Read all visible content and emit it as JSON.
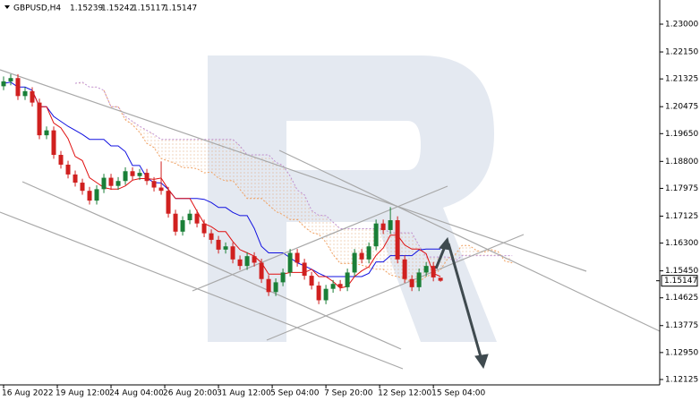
{
  "chart_data": {
    "type": "candlestick",
    "symbol": "GBPUSD,H4",
    "ohlc": [
      [
        1.211,
        1.214,
        1.2098,
        1.2125
      ],
      [
        1.2125,
        1.2147,
        1.2113,
        1.2135
      ],
      [
        1.2135,
        1.2147,
        1.2068,
        1.208
      ],
      [
        1.208,
        1.2107,
        1.2068,
        1.2095
      ],
      [
        1.2095,
        1.2107,
        1.2048,
        1.206
      ],
      [
        1.206,
        1.2072,
        1.1948,
        1.196
      ],
      [
        1.196,
        1.1987,
        1.1948,
        1.1975
      ],
      [
        1.1975,
        1.1987,
        1.1888,
        1.19
      ],
      [
        1.19,
        1.1912,
        1.1858,
        1.187
      ],
      [
        1.187,
        1.1882,
        1.1828,
        1.184
      ],
      [
        1.184,
        1.1852,
        1.1803,
        1.1815
      ],
      [
        1.1815,
        1.1827,
        1.1778,
        1.179
      ],
      [
        1.179,
        1.1802,
        1.1748,
        1.176
      ],
      [
        1.176,
        1.1807,
        1.1748,
        1.1795
      ],
      [
        1.1795,
        1.1842,
        1.1783,
        1.183
      ],
      [
        1.183,
        1.1842,
        1.1793,
        1.1805
      ],
      [
        1.1805,
        1.1832,
        1.1793,
        1.182
      ],
      [
        1.182,
        1.1862,
        1.1808,
        1.185
      ],
      [
        1.185,
        1.1862,
        1.1823,
        1.1835
      ],
      [
        1.1835,
        1.1857,
        1.1823,
        1.1845
      ],
      [
        1.1845,
        1.1857,
        1.1808,
        1.182
      ],
      [
        1.182,
        1.1832,
        1.1788,
        1.18
      ],
      [
        1.18,
        1.188,
        1.1778,
        1.179
      ],
      [
        1.179,
        1.1802,
        1.1708,
        1.172
      ],
      [
        1.172,
        1.1732,
        1.1653,
        1.1665
      ],
      [
        1.1665,
        1.1712,
        1.1653,
        1.17
      ],
      [
        1.17,
        1.1732,
        1.1688,
        1.172
      ],
      [
        1.172,
        1.1732,
        1.1678,
        1.169
      ],
      [
        1.169,
        1.1702,
        1.1648,
        1.166
      ],
      [
        1.166,
        1.1672,
        1.1628,
        1.164
      ],
      [
        1.164,
        1.1652,
        1.1598,
        1.161
      ],
      [
        1.161,
        1.1632,
        1.1598,
        1.162
      ],
      [
        1.162,
        1.1632,
        1.1568,
        1.158
      ],
      [
        1.158,
        1.1592,
        1.1548,
        1.156
      ],
      [
        1.156,
        1.1602,
        1.1548,
        1.159
      ],
      [
        1.159,
        1.1602,
        1.1558,
        1.157
      ],
      [
        1.157,
        1.1582,
        1.1508,
        1.152
      ],
      [
        1.152,
        1.1532,
        1.1468,
        1.148
      ],
      [
        1.148,
        1.1522,
        1.1468,
        1.151
      ],
      [
        1.151,
        1.1552,
        1.1498,
        1.154
      ],
      [
        1.154,
        1.1612,
        1.1528,
        1.16
      ],
      [
        1.16,
        1.1612,
        1.1558,
        1.157
      ],
      [
        1.157,
        1.1582,
        1.1518,
        1.153
      ],
      [
        1.153,
        1.1542,
        1.1488,
        1.15
      ],
      [
        1.15,
        1.1512,
        1.1443,
        1.1455
      ],
      [
        1.1455,
        1.1502,
        1.1443,
        1.149
      ],
      [
        1.149,
        1.1517,
        1.1478,
        1.1505
      ],
      [
        1.1505,
        1.1517,
        1.1483,
        1.1495
      ],
      [
        1.1495,
        1.1552,
        1.1483,
        1.154
      ],
      [
        1.154,
        1.1612,
        1.1528,
        1.16
      ],
      [
        1.16,
        1.1612,
        1.1568,
        1.158
      ],
      [
        1.158,
        1.1632,
        1.1568,
        1.162
      ],
      [
        1.162,
        1.1702,
        1.1608,
        1.169
      ],
      [
        1.169,
        1.1702,
        1.1658,
        1.167
      ],
      [
        1.167,
        1.174,
        1.1658,
        1.17
      ],
      [
        1.17,
        1.1712,
        1.1568,
        1.158
      ],
      [
        1.158,
        1.1592,
        1.1508,
        1.152
      ],
      [
        1.152,
        1.1532,
        1.1483,
        1.1495
      ],
      [
        1.1495,
        1.1552,
        1.1483,
        1.154
      ],
      [
        1.154,
        1.1572,
        1.1528,
        1.156
      ],
      [
        1.156,
        1.1572,
        1.1513,
        1.1525
      ],
      [
        1.15239,
        1.15242,
        1.15117,
        1.15147
      ]
    ],
    "up_color": "#1a7f37",
    "down_color": "#d0201f",
    "xlim": [
      -0.5,
      91.6
    ],
    "xticks": [
      {
        "value": 0,
        "label": "16 Aug 2022"
      },
      {
        "value": 7.5,
        "label": "19 Aug 12:00"
      },
      {
        "value": 15,
        "label": "24 Aug 04:00"
      },
      {
        "value": 22.5,
        "label": "26 Aug 20:00"
      },
      {
        "value": 30,
        "label": "31 Aug 12:00"
      },
      {
        "value": 37.5,
        "label": "5 Sep 04:00"
      },
      {
        "value": 45,
        "label": "7 Sep 20:00"
      },
      {
        "value": 52.5,
        "label": "12 Sep 12:00"
      },
      {
        "value": 60,
        "label": "15 Sep 04:00"
      }
    ],
    "ylim": [
      1.1196,
      1.2374
    ],
    "yticks": [
      {
        "value": 1.23,
        "label": "1.23000"
      },
      {
        "value": 1.2215,
        "label": "1.22150"
      },
      {
        "value": 1.21325,
        "label": "1.21325"
      },
      {
        "value": 1.20475,
        "label": "1.20475"
      },
      {
        "value": 1.1965,
        "label": "1.19650"
      },
      {
        "value": 1.188,
        "label": "1.18800"
      },
      {
        "value": 1.17975,
        "label": "1.17975"
      },
      {
        "value": 1.17125,
        "label": "1.17125"
      },
      {
        "value": 1.163,
        "label": "1.16300"
      },
      {
        "value": 1.1545,
        "label": "1.15450"
      },
      {
        "value": 1.14625,
        "label": "1.14625"
      },
      {
        "value": 1.13775,
        "label": "1.13775"
      },
      {
        "value": 1.1295,
        "label": "1.12950"
      },
      {
        "value": 1.12125,
        "label": "1.12125"
      }
    ]
  }
}
